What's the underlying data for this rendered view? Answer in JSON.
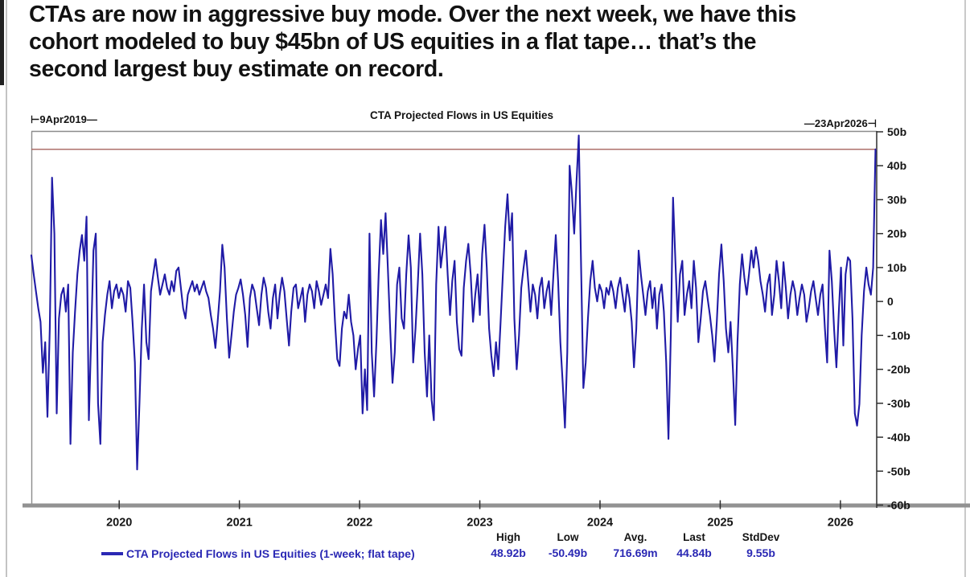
{
  "headline": {
    "line1": "CTAs are now in aggressive buy mode. Over the next week, we have this",
    "line2": "cohort modeled to buy $45bn of US equities in a flat tape… that’s the",
    "line3": "second largest buy estimate on record."
  },
  "chart_data": {
    "type": "line",
    "title": "CTA Projected Flows in US Equities",
    "start_date_label": "⊢9Apr2019—",
    "end_date_label": "—23Apr2026⊣",
    "x_range": [
      "9Apr2019",
      "23Apr2026"
    ],
    "frequency": "weekly",
    "unit": "billions of USD",
    "grid": "off",
    "legend_position": "bottom-left",
    "ylim": [
      -60,
      50
    ],
    "x_ticks": [
      "2020",
      "2021",
      "2022",
      "2023",
      "2024",
      "2025",
      "2026"
    ],
    "y_ticks": [
      {
        "label": "50b",
        "value": 50
      },
      {
        "label": "40b",
        "value": 40
      },
      {
        "label": "30b",
        "value": 30
      },
      {
        "label": "20b",
        "value": 20
      },
      {
        "label": "10b",
        "value": 10
      },
      {
        "label": "0",
        "value": 0
      },
      {
        "label": "-10b",
        "value": -10
      },
      {
        "label": "-20b",
        "value": -20
      },
      {
        "label": "-30b",
        "value": -30
      },
      {
        "label": "-40b",
        "value": -40
      },
      {
        "label": "-50b",
        "value": -50
      },
      {
        "label": "-60b",
        "value": -60
      }
    ],
    "reference_line": {
      "value": 44.84,
      "color": "#a6625c"
    },
    "stats": [
      {
        "label": "High",
        "value": "48.92b"
      },
      {
        "label": "Low",
        "value": "-50.49b"
      },
      {
        "label": "Avg.",
        "value": "716.69m"
      },
      {
        "label": "Last",
        "value": "44.84b"
      },
      {
        "label": "StdDev",
        "value": "9.55b"
      }
    ],
    "colors": {
      "line": "#201ba6",
      "reference": "#a6625c",
      "legend_text": "#2a28b4",
      "axis": "#3a3a3a",
      "frame": "#8c8c8c"
    },
    "series": [
      {
        "name": "CTA Projected Flows in US Equities (1-week; flat tape)",
        "color": "#201ba6",
        "values": [
          13.6,
          8,
          3,
          -2,
          -6,
          -21,
          -12,
          -34,
          -8,
          36.5,
          20,
          -33,
          -5,
          2,
          4,
          -3,
          5,
          -42,
          -15,
          -3,
          8,
          15,
          19.6,
          12,
          25,
          -35,
          -10,
          15,
          20,
          -30,
          -42,
          -12,
          -4,
          2,
          6,
          -2,
          3,
          5,
          1,
          4,
          2,
          -3,
          6,
          4,
          -6,
          -18,
          -49.5,
          -30,
          -8,
          5,
          -12,
          -17,
          3,
          8,
          12.5,
          7,
          2,
          5,
          8,
          4,
          2,
          6,
          3,
          9,
          10,
          4,
          -2,
          -5,
          2,
          4,
          6,
          3,
          5,
          2,
          4,
          6,
          3,
          1,
          -4,
          -8,
          -13.7,
          -6,
          3,
          16.7,
          10,
          -5,
          -16.6,
          -10,
          -3,
          2,
          4,
          6.5,
          2,
          -4,
          -13.4,
          1,
          5,
          3,
          -2,
          -7,
          2,
          7,
          4,
          -3,
          -8,
          1,
          5,
          -5,
          2,
          7,
          3,
          -5,
          -13,
          -3,
          4,
          5,
          -2,
          1,
          4,
          -6,
          2,
          5,
          3,
          -2,
          6,
          3,
          -1,
          2,
          5,
          1,
          15.5,
          8,
          -6,
          -17,
          -19,
          -8,
          -3,
          -5,
          2,
          -6,
          -10,
          -20,
          -14,
          -10,
          -33,
          -20,
          -32,
          20,
          -15,
          -28,
          -12,
          8,
          24,
          14,
          26,
          10,
          -8,
          -24,
          -15,
          5,
          10,
          -5,
          -8,
          8,
          19.5,
          10,
          -18,
          -8,
          5,
          20,
          8,
          -15,
          -28,
          -10,
          -29,
          -35,
          5,
          22,
          10,
          16,
          22,
          8,
          -4,
          6,
          12,
          -6,
          -14,
          -16,
          4,
          12,
          17,
          8,
          -6,
          2,
          8,
          -4,
          14,
          22.6,
          10,
          -8,
          -16,
          -22,
          -12,
          -20,
          -6,
          8,
          22,
          31.6,
          18,
          26,
          -5,
          -20,
          -10,
          4,
          10,
          15,
          6,
          -3,
          5,
          2,
          -5,
          4,
          7,
          -2,
          3,
          6,
          -4,
          8,
          19.6,
          6,
          -12,
          -24,
          -37.2,
          -15,
          40,
          32,
          20,
          35,
          48.9,
          10,
          -25.5,
          -18,
          -5,
          6,
          12,
          4,
          0,
          5,
          3,
          -2,
          4,
          2,
          6,
          3,
          -2,
          4,
          7,
          2,
          -3,
          5,
          1,
          -6,
          -19.4,
          -8,
          15,
          8,
          2,
          -4,
          3,
          6,
          -2,
          4,
          -8,
          2,
          5,
          -3,
          -18,
          -40.5,
          -10,
          30.6,
          12,
          -6,
          8,
          12,
          -4,
          2,
          6,
          -2,
          12,
          4,
          -12,
          -5,
          3,
          6,
          1,
          -4,
          -10,
          -17.7,
          -6,
          8,
          16.8,
          6,
          -8,
          -15,
          -6,
          -20,
          -36.4,
          -12,
          5,
          13.9,
          7,
          2,
          8,
          15,
          10,
          16,
          12,
          6,
          2,
          -3,
          5,
          8,
          -4,
          2,
          12,
          6,
          -2,
          11.6,
          4,
          -5,
          2,
          6,
          3,
          -4,
          1,
          5,
          2,
          -6,
          -2,
          3,
          6,
          1,
          -4,
          2,
          5,
          -8,
          -18,
          15,
          6,
          -8,
          -19.4,
          -4,
          10,
          -13,
          8,
          13,
          12,
          -5,
          -33,
          -36.6,
          -30.2,
          -10,
          3,
          10,
          5,
          2,
          10,
          44.84
        ]
      }
    ]
  }
}
